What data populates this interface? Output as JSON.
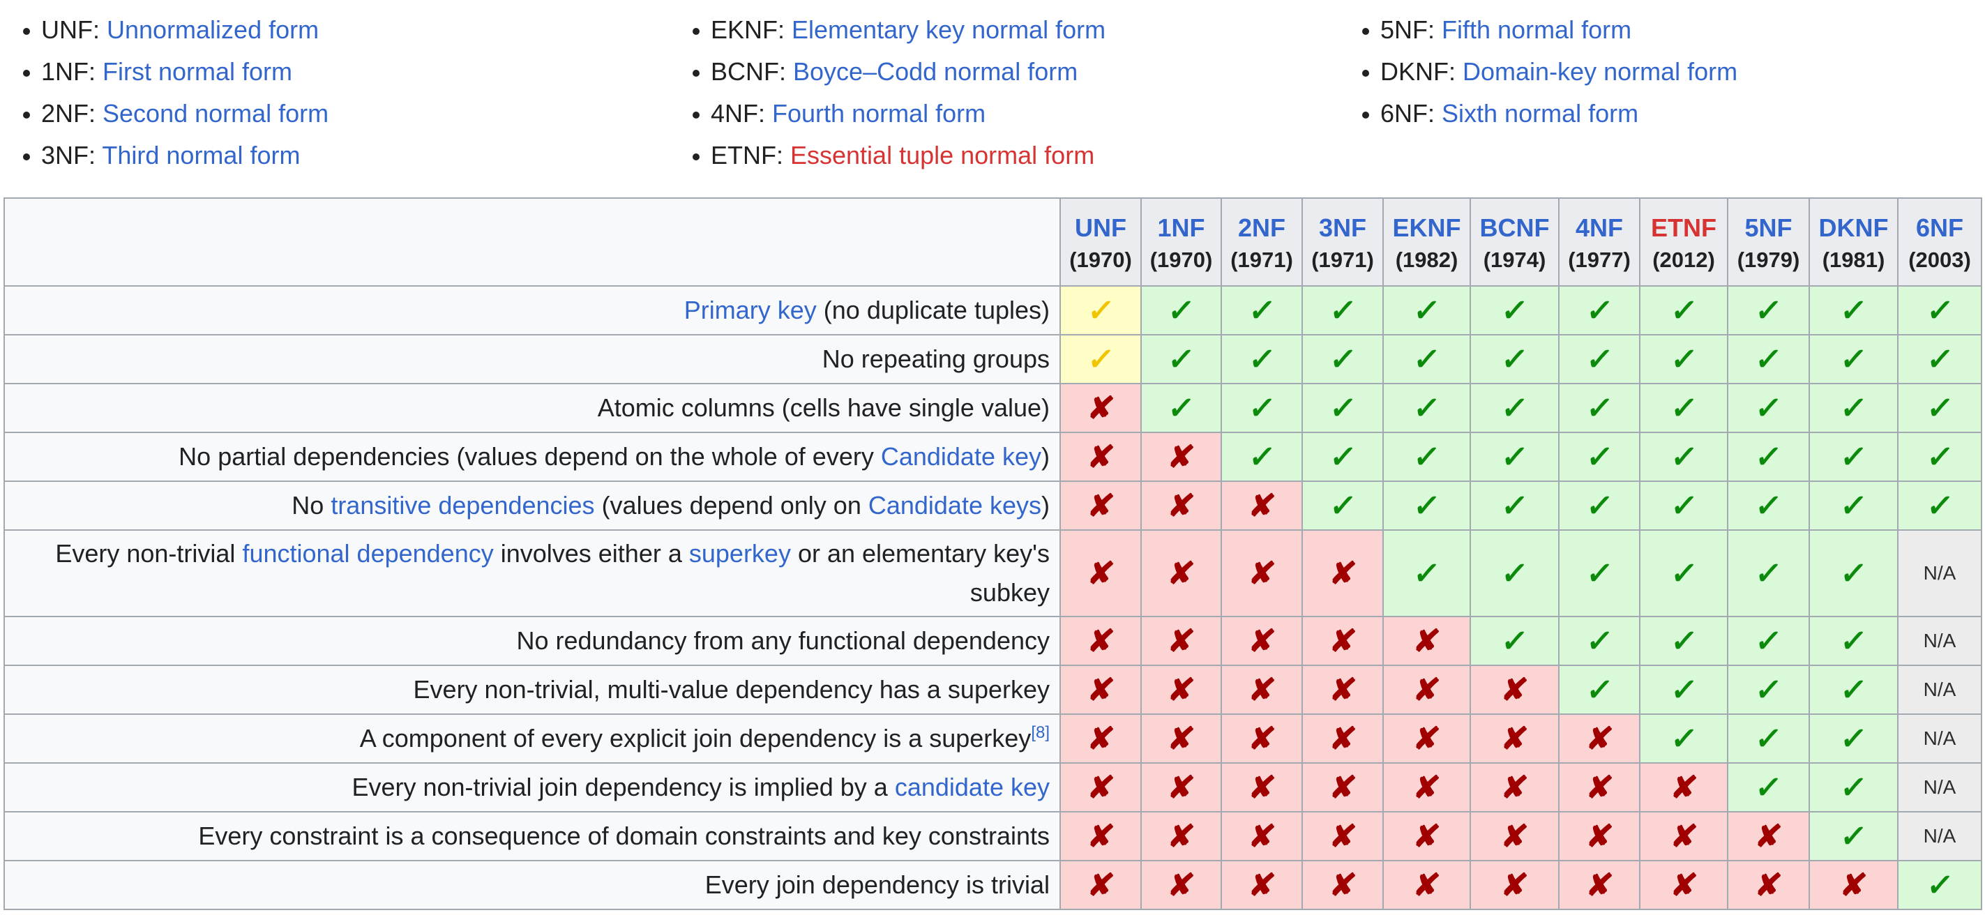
{
  "legend": {
    "col1": [
      {
        "abbr": "UNF: ",
        "link": "Unnormalized form",
        "link_color": "#3366cc"
      },
      {
        "abbr": "1NF: ",
        "link": "First normal form",
        "link_color": "#3366cc"
      },
      {
        "abbr": "2NF: ",
        "link": "Second normal form",
        "link_color": "#3366cc"
      },
      {
        "abbr": "3NF: ",
        "link": "Third normal form",
        "link_color": "#3366cc"
      }
    ],
    "col2": [
      {
        "abbr": "EKNF: ",
        "link": "Elementary key normal form",
        "link_color": "#3366cc"
      },
      {
        "abbr": "BCNF: ",
        "link": "Boyce–Codd normal form",
        "link_color": "#3366cc"
      },
      {
        "abbr": "4NF: ",
        "link": "Fourth normal form",
        "link_color": "#3366cc"
      },
      {
        "abbr": "ETNF: ",
        "link": "Essential tuple normal form",
        "link_color": "#d73333"
      }
    ],
    "col3": [
      {
        "abbr": "5NF: ",
        "link": "Fifth normal form",
        "link_color": "#3366cc"
      },
      {
        "abbr": "DKNF: ",
        "link": "Domain-key normal form",
        "link_color": "#3366cc"
      },
      {
        "abbr": "6NF: ",
        "link": "Sixth normal form",
        "link_color": "#3366cc"
      }
    ]
  },
  "table": {
    "columns": [
      {
        "abbr": "UNF",
        "year": "(1970)"
      },
      {
        "abbr": "1NF",
        "year": "(1970)"
      },
      {
        "abbr": "2NF",
        "year": "(1971)"
      },
      {
        "abbr": "3NF",
        "year": "(1971)"
      },
      {
        "abbr": "EKNF",
        "year": "(1982)"
      },
      {
        "abbr": "BCNF",
        "year": "(1974)"
      },
      {
        "abbr": "4NF",
        "year": "(1977)"
      },
      {
        "abbr": "ETNF",
        "year": "(2012)"
      },
      {
        "abbr": "5NF",
        "year": "(1979)"
      },
      {
        "abbr": "DKNF",
        "year": "(1981)"
      },
      {
        "abbr": "6NF",
        "year": "(2003)"
      }
    ],
    "marks": {
      "yes": "✓",
      "no": "✘",
      "part": "✓",
      "na": "N/A"
    },
    "rows": [
      {
        "label": [
          {
            "t": "Primary key",
            "link": true
          },
          {
            "t": " (no duplicate tuples)"
          }
        ],
        "cells": [
          "part",
          "yes",
          "yes",
          "yes",
          "yes",
          "yes",
          "yes",
          "yes",
          "yes",
          "yes",
          "yes"
        ]
      },
      {
        "label": [
          {
            "t": "No repeating groups"
          }
        ],
        "cells": [
          "part",
          "yes",
          "yes",
          "yes",
          "yes",
          "yes",
          "yes",
          "yes",
          "yes",
          "yes",
          "yes"
        ]
      },
      {
        "label": [
          {
            "t": "Atomic columns (cells have single value)"
          }
        ],
        "cells": [
          "no",
          "yes",
          "yes",
          "yes",
          "yes",
          "yes",
          "yes",
          "yes",
          "yes",
          "yes",
          "yes"
        ]
      },
      {
        "label": [
          {
            "t": "No partial dependencies (values depend on the whole of every "
          },
          {
            "t": "Candidate key",
            "link": true
          },
          {
            "t": ")"
          }
        ],
        "cells": [
          "no",
          "no",
          "yes",
          "yes",
          "yes",
          "yes",
          "yes",
          "yes",
          "yes",
          "yes",
          "yes"
        ]
      },
      {
        "label": [
          {
            "t": "No "
          },
          {
            "t": "transitive dependencies",
            "link": true
          },
          {
            "t": " (values depend only on "
          },
          {
            "t": "Candidate keys",
            "link": true
          },
          {
            "t": ")"
          }
        ],
        "cells": [
          "no",
          "no",
          "no",
          "yes",
          "yes",
          "yes",
          "yes",
          "yes",
          "yes",
          "yes",
          "yes"
        ]
      },
      {
        "label": [
          {
            "t": "Every non-trivial "
          },
          {
            "t": "functional dependency",
            "link": true
          },
          {
            "t": " involves either a "
          },
          {
            "t": "superkey",
            "link": true
          },
          {
            "t": " or an elementary key's subkey"
          }
        ],
        "cells": [
          "no",
          "no",
          "no",
          "no",
          "yes",
          "yes",
          "yes",
          "yes",
          "yes",
          "yes",
          "na"
        ]
      },
      {
        "label": [
          {
            "t": "No redundancy from any functional dependency"
          }
        ],
        "cells": [
          "no",
          "no",
          "no",
          "no",
          "no",
          "yes",
          "yes",
          "yes",
          "yes",
          "yes",
          "na"
        ]
      },
      {
        "label": [
          {
            "t": "Every non-trivial, multi-value dependency has a superkey"
          }
        ],
        "cells": [
          "no",
          "no",
          "no",
          "no",
          "no",
          "no",
          "yes",
          "yes",
          "yes",
          "yes",
          "na"
        ]
      },
      {
        "label": [
          {
            "t": "A component of every explicit join dependency is a superkey"
          },
          {
            "t": "[8]",
            "sup": true
          }
        ],
        "cells": [
          "no",
          "no",
          "no",
          "no",
          "no",
          "no",
          "no",
          "yes",
          "yes",
          "yes",
          "na"
        ]
      },
      {
        "label": [
          {
            "t": "Every non-trivial join dependency is implied by a "
          },
          {
            "t": "candidate key",
            "link": true
          }
        ],
        "cells": [
          "no",
          "no",
          "no",
          "no",
          "no",
          "no",
          "no",
          "no",
          "yes",
          "yes",
          "na"
        ]
      },
      {
        "label": [
          {
            "t": "Every constraint is a consequence of domain constraints and key constraints"
          }
        ],
        "cells": [
          "no",
          "no",
          "no",
          "no",
          "no",
          "no",
          "no",
          "no",
          "no",
          "yes",
          "na"
        ]
      },
      {
        "label": [
          {
            "t": "Every join dependency is trivial"
          }
        ],
        "cells": [
          "no",
          "no",
          "no",
          "no",
          "no",
          "no",
          "no",
          "no",
          "no",
          "no",
          "yes"
        ]
      }
    ]
  },
  "colors": {
    "link": "#3366cc",
    "red_link": "#d73333",
    "yes_bg": "#d9f9d9",
    "no_bg": "#fdd4d4",
    "part_bg": "#fefec6",
    "na_bg": "#ececec"
  }
}
